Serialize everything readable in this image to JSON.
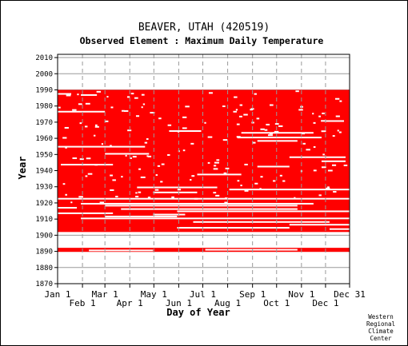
{
  "chart_data": {
    "type": "heatmap",
    "title": "BEAVER, UTAH   (420519)",
    "subtitle": "Observed Element : Maximum Daily Temperature",
    "xlabel": "Day of Year",
    "ylabel": "Year",
    "credit": [
      "Western",
      "Regional",
      "Climate",
      "Center"
    ],
    "x_ticks_top_row": [
      {
        "label": "Jan 1",
        "day": 1
      },
      {
        "label": "Mar 1",
        "day": 60
      },
      {
        "label": "May 1",
        "day": 121
      },
      {
        "label": "Jul 1",
        "day": 182
      },
      {
        "label": "Sep 1",
        "day": 244
      },
      {
        "label": "Nov 1",
        "day": 305
      },
      {
        "label": "Dec 31",
        "day": 365
      }
    ],
    "x_ticks_bottom_row": [
      {
        "label": "Feb 1",
        "day": 32
      },
      {
        "label": "Apr 1",
        "day": 91
      },
      {
        "label": "Jun 1",
        "day": 152
      },
      {
        "label": "Aug 1",
        "day": 213
      },
      {
        "label": "Oct 1",
        "day": 274
      },
      {
        "label": "Dec 1",
        "day": 335
      }
    ],
    "y_ticks": [
      1870,
      1880,
      1890,
      1900,
      1910,
      1920,
      1930,
      1940,
      1950,
      1960,
      1970,
      1980,
      1990,
      2000,
      2010
    ],
    "xlim": [
      1,
      365
    ],
    "ylim": [
      1870,
      2012
    ],
    "mark_color": "#ff0000",
    "series": [
      {
        "year_start": 1889.7,
        "year_end": 1892.2,
        "day_start": 1,
        "day_end": 365
      },
      {
        "year_start": 1902.0,
        "year_end": 1990.0,
        "day_start": 1,
        "day_end": 365
      }
    ],
    "gaps": [
      {
        "year": 1887,
        "day_start": 1,
        "day_end": 365
      }
    ]
  }
}
